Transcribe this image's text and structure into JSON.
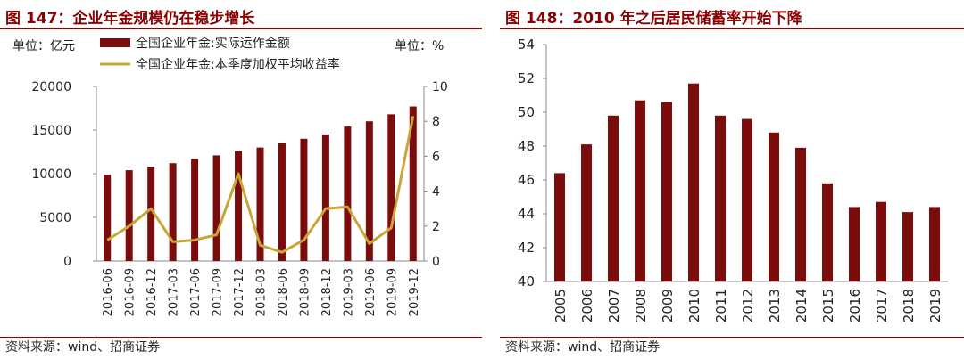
{
  "chart_data": [
    {
      "type": "bar+line",
      "title": "图 147：企业年金规模仍在稳步增长",
      "left_unit": "单位：亿元",
      "right_unit": "单位：%",
      "categories": [
        "2016-06",
        "2016-09",
        "2016-12",
        "2017-03",
        "2017-06",
        "2017-09",
        "2017-12",
        "2018-03",
        "2018-06",
        "2018-09",
        "2018-12",
        "2019-03",
        "2019-06",
        "2019-09",
        "2019-12"
      ],
      "series": [
        {
          "name": "全国企业年金:实际运作金额",
          "type": "bar",
          "axis": "left",
          "values": [
            9900,
            10400,
            10800,
            11200,
            11700,
            12100,
            12600,
            13000,
            13500,
            14000,
            14500,
            15400,
            16000,
            16800,
            17700
          ]
        },
        {
          "name": "全国企业年金:本季度加权平均收益率",
          "type": "line",
          "axis": "right",
          "values": [
            1.2,
            2.0,
            3.0,
            1.1,
            1.2,
            1.5,
            5.0,
            0.9,
            0.5,
            1.2,
            3.0,
            3.1,
            1.0,
            1.9,
            8.3
          ]
        }
      ],
      "ylim_left": [
        0,
        20000
      ],
      "yticks_left": [
        "0",
        "5000",
        "10000",
        "15000",
        "20000"
      ],
      "ylim_right": [
        0,
        10
      ],
      "yticks_right": [
        "0",
        "2",
        "4",
        "6",
        "8",
        "10"
      ],
      "source": "资料来源：wind、招商证券",
      "colors": {
        "bar": "#7b0c0c",
        "line": "#c9a437",
        "accent": "#8b0000"
      }
    },
    {
      "type": "bar",
      "title": "图 148：2010 年之后居民储蓄率开始下降",
      "categories": [
        "2005",
        "2006",
        "2007",
        "2008",
        "2009",
        "2010",
        "2011",
        "2012",
        "2013",
        "2014",
        "2015",
        "2016",
        "2017",
        "2018",
        "2019"
      ],
      "values": [
        46.4,
        48.1,
        49.8,
        50.7,
        50.6,
        51.7,
        49.8,
        49.6,
        48.8,
        47.9,
        45.8,
        44.4,
        44.7,
        44.1,
        44.4
      ],
      "ylim": [
        40,
        54
      ],
      "yticks": [
        "40",
        "42",
        "44",
        "46",
        "48",
        "50",
        "52",
        "54"
      ],
      "source": "资料来源：wind、招商证券",
      "colors": {
        "bar": "#7b0c0c",
        "accent": "#8b0000"
      }
    }
  ]
}
